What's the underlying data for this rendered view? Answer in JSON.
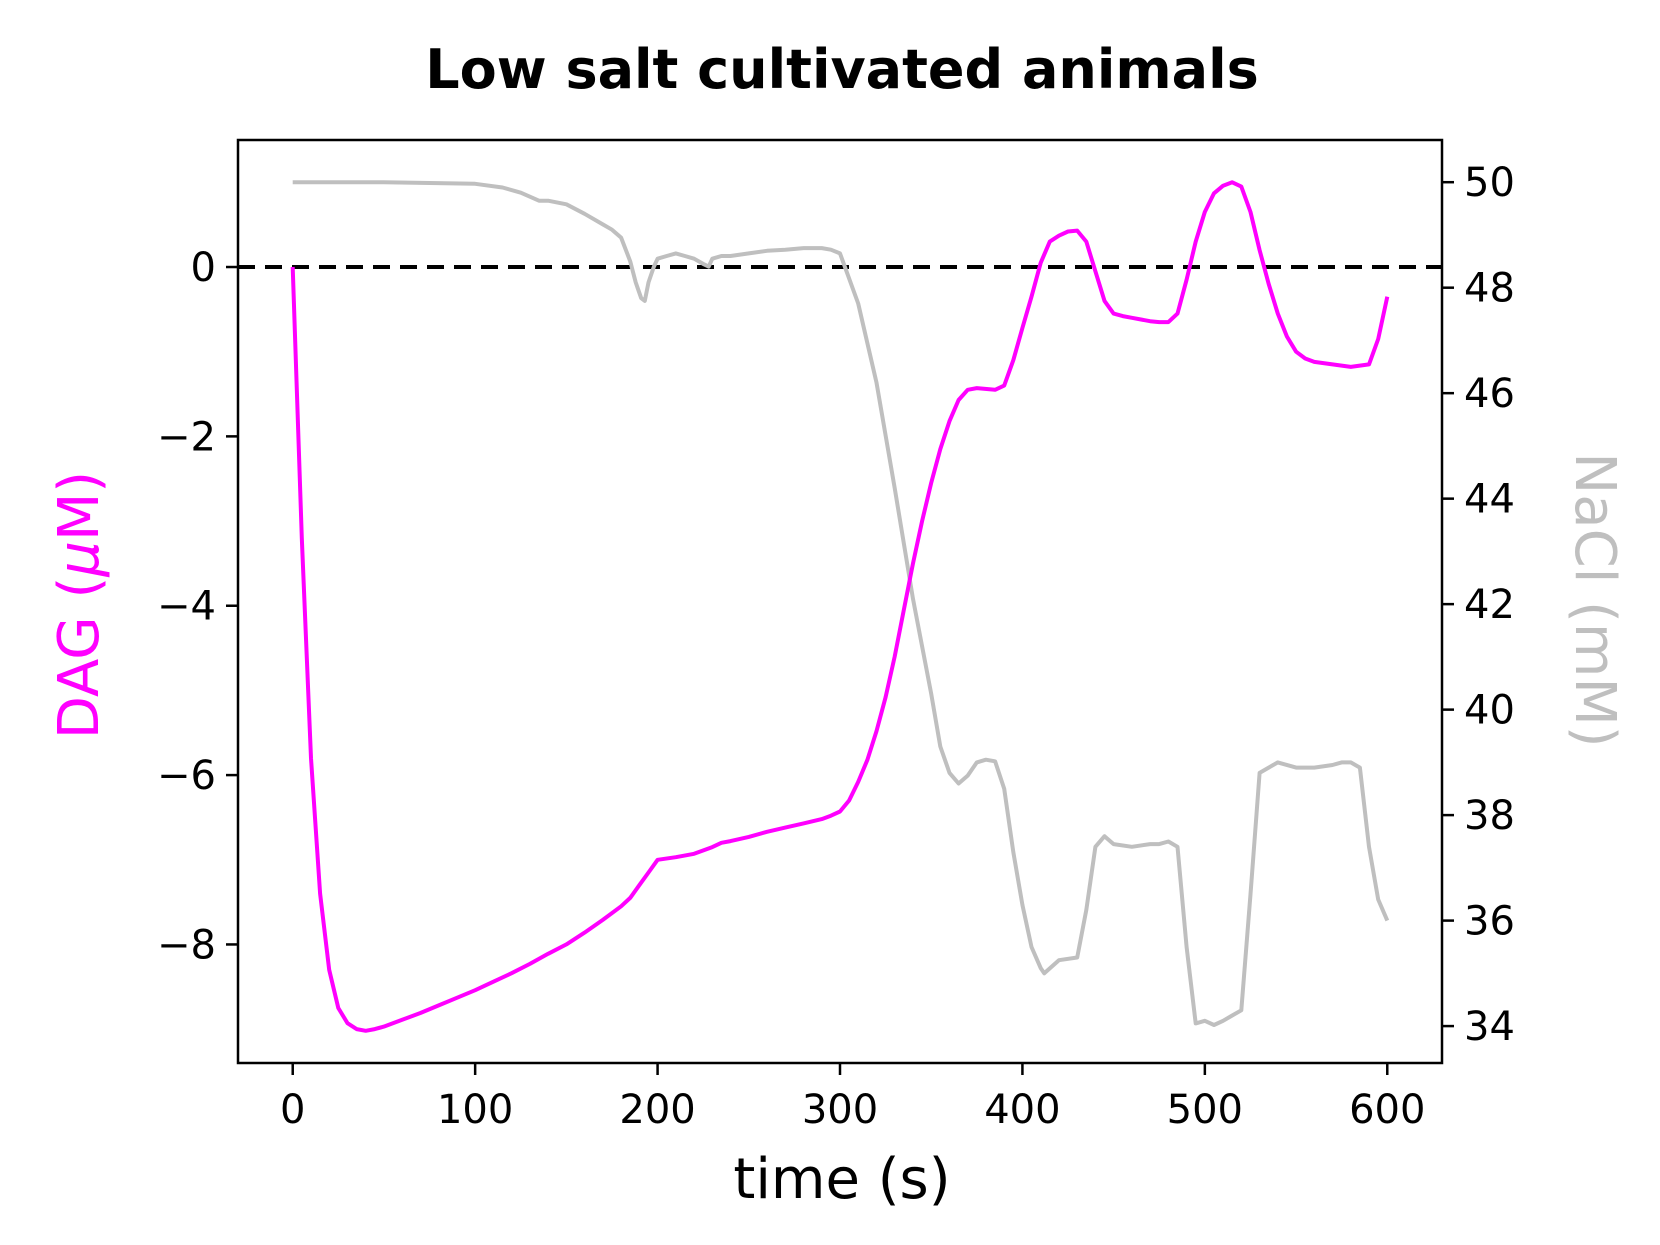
{
  "chart_data": {
    "type": "line",
    "title": "Low salt cultivated animals",
    "xlabel": "time (s)",
    "ylabel_left": "DAG (μM)",
    "ylabel_left_parts": {
      "text": "DAG (",
      "mu": "μ",
      "unit": "M)"
    },
    "ylabel_right": "NaCl (mM)",
    "xlim": [
      -30,
      630
    ],
    "ylim_left": [
      -9.4,
      1.5
    ],
    "ylim_right": [
      33.3,
      50.8
    ],
    "x_ticks": [
      0,
      100,
      200,
      300,
      400,
      500,
      600
    ],
    "x_tick_labels": [
      "0",
      "100",
      "200",
      "300",
      "400",
      "500",
      "600"
    ],
    "y_left_ticks": [
      0,
      -2,
      -4,
      -6,
      -8
    ],
    "y_left_tick_labels": [
      "0",
      "−2",
      "−4",
      "−6",
      "−8"
    ],
    "y_right_ticks": [
      50,
      48,
      46,
      44,
      42,
      40,
      38,
      36,
      34
    ],
    "y_right_tick_labels": [
      "50",
      "48",
      "46",
      "44",
      "42",
      "40",
      "38",
      "36",
      "34"
    ],
    "reference_line": {
      "y": 0,
      "style": "dashed",
      "color": "#000000"
    },
    "grid": false,
    "series": [
      {
        "axis": "left",
        "color": "#ff00ff",
        "x": [
          0,
          5,
          10,
          15,
          20,
          25,
          30,
          35,
          40,
          45,
          50,
          60,
          70,
          80,
          90,
          100,
          110,
          120,
          130,
          140,
          150,
          160,
          170,
          180,
          185,
          190,
          195,
          200,
          210,
          220,
          230,
          235,
          240,
          250,
          260,
          270,
          280,
          290,
          295,
          300,
          305,
          310,
          315,
          320,
          325,
          330,
          335,
          340,
          345,
          350,
          355,
          360,
          365,
          370,
          375,
          385,
          390,
          395,
          400,
          405,
          410,
          415,
          420,
          425,
          430,
          435,
          440,
          445,
          450,
          455,
          460,
          465,
          470,
          475,
          480,
          485,
          490,
          495,
          500,
          505,
          510,
          515,
          520,
          525,
          530,
          535,
          540,
          545,
          550,
          555,
          560,
          570,
          580,
          590,
          595,
          600
        ],
        "y": [
          0,
          -3.2,
          -5.8,
          -7.4,
          -8.3,
          -8.75,
          -8.93,
          -9.0,
          -9.02,
          -9.0,
          -8.97,
          -8.89,
          -8.81,
          -8.72,
          -8.63,
          -8.54,
          -8.44,
          -8.34,
          -8.23,
          -8.11,
          -8.0,
          -7.86,
          -7.71,
          -7.55,
          -7.45,
          -7.3,
          -7.15,
          -7.0,
          -6.97,
          -6.93,
          -6.85,
          -6.8,
          -6.78,
          -6.73,
          -6.67,
          -6.62,
          -6.57,
          -6.52,
          -6.48,
          -6.43,
          -6.3,
          -6.08,
          -5.82,
          -5.48,
          -5.08,
          -4.6,
          -4.05,
          -3.5,
          -3.0,
          -2.55,
          -2.15,
          -1.82,
          -1.57,
          -1.45,
          -1.43,
          -1.45,
          -1.4,
          -1.1,
          -0.72,
          -0.35,
          0.05,
          0.3,
          0.37,
          0.42,
          0.43,
          0.3,
          -0.05,
          -0.4,
          -0.55,
          -0.58,
          -0.6,
          -0.62,
          -0.64,
          -0.65,
          -0.65,
          -0.55,
          -0.15,
          0.3,
          0.65,
          0.87,
          0.96,
          1.0,
          0.95,
          0.65,
          0.2,
          -0.2,
          -0.55,
          -0.82,
          -1.0,
          -1.08,
          -1.12,
          -1.15,
          -1.18,
          -1.15,
          -0.85,
          -0.35
        ]
      },
      {
        "axis": "right",
        "color": "#bfbfbf",
        "x": [
          0,
          50,
          100,
          115,
          125,
          135,
          140,
          150,
          160,
          170,
          175,
          180,
          185,
          188,
          191,
          193,
          195,
          198,
          200,
          205,
          210,
          215,
          220,
          225,
          228,
          230,
          235,
          240,
          250,
          260,
          270,
          280,
          285,
          290,
          295,
          300,
          310,
          320,
          330,
          340,
          350,
          355,
          360,
          365,
          370,
          375,
          380,
          385,
          390,
          395,
          400,
          405,
          410,
          412,
          420,
          430,
          435,
          440,
          445,
          450,
          460,
          470,
          475,
          480,
          485,
          490,
          495,
          500,
          505,
          510,
          515,
          520,
          525,
          530,
          535,
          540,
          550,
          560,
          570,
          575,
          580,
          585,
          590,
          595,
          600
        ],
        "y": [
          50,
          50,
          49.97,
          49.9,
          49.8,
          49.65,
          49.65,
          49.58,
          49.4,
          49.2,
          49.1,
          48.95,
          48.5,
          48.1,
          47.8,
          47.75,
          48.1,
          48.4,
          48.55,
          48.6,
          48.65,
          48.6,
          48.55,
          48.45,
          48.4,
          48.55,
          48.6,
          48.6,
          48.65,
          48.7,
          48.72,
          48.75,
          48.75,
          48.75,
          48.72,
          48.65,
          47.7,
          46.2,
          44.2,
          42.1,
          40.3,
          39.3,
          38.8,
          38.6,
          38.75,
          39.0,
          39.05,
          39.02,
          38.5,
          37.3,
          36.3,
          35.5,
          35.1,
          35.0,
          35.25,
          35.3,
          36.2,
          37.4,
          37.6,
          37.45,
          37.4,
          37.45,
          37.45,
          37.5,
          37.4,
          35.5,
          34.05,
          34.1,
          34.02,
          34.1,
          34.2,
          34.3,
          36.5,
          38.8,
          38.9,
          39.0,
          38.9,
          38.9,
          38.95,
          39.0,
          39.0,
          38.9,
          37.4,
          36.4,
          36.0
        ]
      }
    ]
  }
}
